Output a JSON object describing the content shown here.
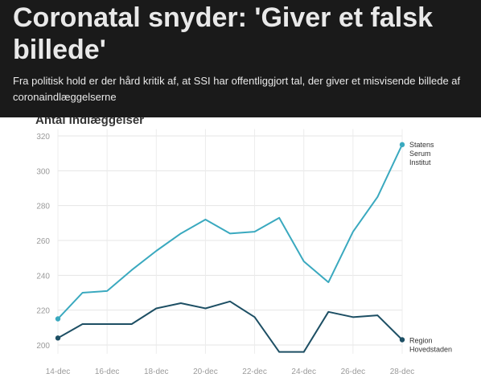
{
  "header": {
    "headline": "Coronatal snyder: 'Giver et falsk billede'",
    "subhead": "Fra politisk hold er der hård kritik af, at SSI har offentliggjort tal, der giver et misvisende billede af coronaindlæggelserne"
  },
  "chart_data": {
    "type": "line",
    "title": "Antal indlæggelser",
    "x": [
      "14-dec",
      "15-dec",
      "16-dec",
      "17-dec",
      "18-dec",
      "19-dec",
      "20-dec",
      "21-dec",
      "22-dec",
      "23-dec",
      "24-dec",
      "25-dec",
      "26-dec",
      "27-dec",
      "28-dec"
    ],
    "x_tick_labels": [
      "14-dec",
      "16-dec",
      "18-dec",
      "20-dec",
      "22-dec",
      "24-dec",
      "26-dec",
      "28-dec"
    ],
    "y_ticks": [
      200,
      220,
      240,
      260,
      280,
      300,
      320
    ],
    "ylim": [
      195,
      322
    ],
    "grid": true,
    "series": [
      {
        "name": "Statens Serum Institut",
        "label_lines": [
          "Statens",
          "Serum",
          "Institut"
        ],
        "color": "#3aa9bf",
        "values": [
          215,
          230,
          231,
          243,
          254,
          264,
          272,
          264,
          265,
          273,
          248,
          236,
          265,
          285,
          315
        ]
      },
      {
        "name": "Region Hovedstaden",
        "label_lines": [
          "Region",
          "Hovedstaden"
        ],
        "color": "#1d4f64",
        "values": [
          204,
          212,
          212,
          212,
          221,
          224,
          221,
          225,
          216,
          196,
          196,
          219,
          216,
          217,
          203
        ]
      }
    ]
  }
}
